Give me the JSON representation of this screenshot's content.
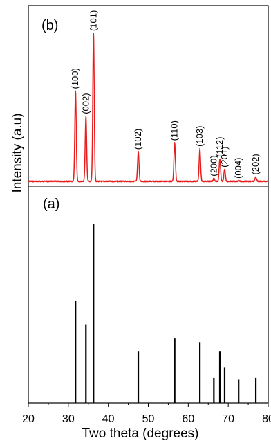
{
  "chart_data": [
    {
      "panel_label": "(b)",
      "type": "line",
      "xlabel": "Two theta (degrees)",
      "ylabel": "Intensity (a.u)",
      "xlim": [
        20,
        80
      ],
      "ylim": [
        0,
        100
      ],
      "color": "#e81c1c",
      "peaks": [
        {
          "x": 31.8,
          "y": 61,
          "label": "(100)"
        },
        {
          "x": 34.4,
          "y": 44,
          "label": "(002)"
        },
        {
          "x": 36.3,
          "y": 100,
          "label": "(101)"
        },
        {
          "x": 47.5,
          "y": 20,
          "label": "(102)"
        },
        {
          "x": 56.6,
          "y": 26,
          "label": "(110)"
        },
        {
          "x": 62.9,
          "y": 22,
          "label": "(103)"
        },
        {
          "x": 66.4,
          "y": 2,
          "label": "(200)"
        },
        {
          "x": 67.9,
          "y": 15,
          "label": "(112)"
        },
        {
          "x": 69.1,
          "y": 8,
          "label": "(201)"
        },
        {
          "x": 72.6,
          "y": 0.5,
          "label": "(004)"
        },
        {
          "x": 76.9,
          "y": 3,
          "label": "(202)"
        }
      ]
    },
    {
      "panel_label": "(a)",
      "type": "bar",
      "xlabel": "Two theta (degrees)",
      "ylabel": "Intensity (a.u)",
      "xlim": [
        20,
        80
      ],
      "ylim": [
        0,
        100
      ],
      "color": "#000000",
      "x": [
        31.8,
        34.4,
        36.3,
        47.5,
        56.6,
        62.9,
        66.4,
        67.9,
        69.1,
        72.6,
        76.9
      ],
      "values": [
        57,
        44,
        100,
        29,
        36,
        34,
        14,
        29,
        20,
        13,
        14
      ]
    }
  ],
  "axis": {
    "xlabel": "Two theta (degrees)",
    "ylabel": "Intensity (a.u)",
    "x_ticks": [
      "20",
      "30",
      "40",
      "50",
      "60",
      "70",
      "80"
    ],
    "x_tick_values": [
      20,
      30,
      40,
      50,
      60,
      70,
      80
    ]
  }
}
